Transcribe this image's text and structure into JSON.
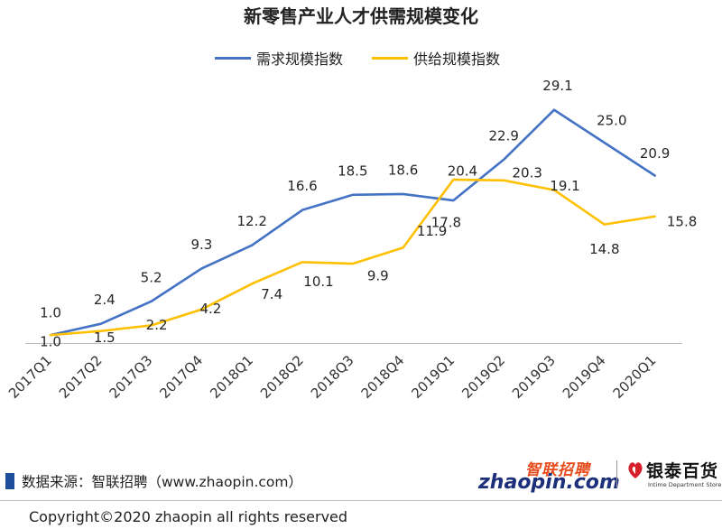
{
  "chart_data": {
    "type": "line",
    "title": "新零售产业人才供需规模变化",
    "categories": [
      "2017Q1",
      "2017Q2",
      "2017Q3",
      "2017Q4",
      "2018Q1",
      "2018Q2",
      "2018Q3",
      "2018Q4",
      "2019Q1",
      "2019Q2",
      "2019Q3",
      "2019Q4",
      "2020Q1"
    ],
    "series": [
      {
        "name": "需求规模指数",
        "color": "#4472c4",
        "values": [
          1.0,
          2.4,
          5.2,
          9.3,
          12.2,
          16.6,
          18.5,
          18.6,
          17.8,
          22.9,
          29.1,
          25.0,
          20.9
        ]
      },
      {
        "name": "供给规模指数",
        "color": "#ffc000",
        "values": [
          1.0,
          1.5,
          2.2,
          4.2,
          7.4,
          10.1,
          9.9,
          11.9,
          20.4,
          20.3,
          19.1,
          14.8,
          15.8
        ]
      }
    ],
    "ylim": [
      0,
      32
    ],
    "grid": false,
    "legend": "top-center",
    "xlabel": "",
    "ylabel": ""
  },
  "footer": {
    "source": "数据来源：智联招聘（www.zhaopin.com）",
    "copyright": "Copyright©2020 zhaopin all rights reserved"
  },
  "logos": {
    "zhaopin_cn": "智联招聘",
    "zhaopin_en": "zhaopin.com",
    "yintai_cn": "银泰百货",
    "yintai_en": "Intime Department Store"
  },
  "colors": {
    "source_bar": "#1f4e9c"
  }
}
